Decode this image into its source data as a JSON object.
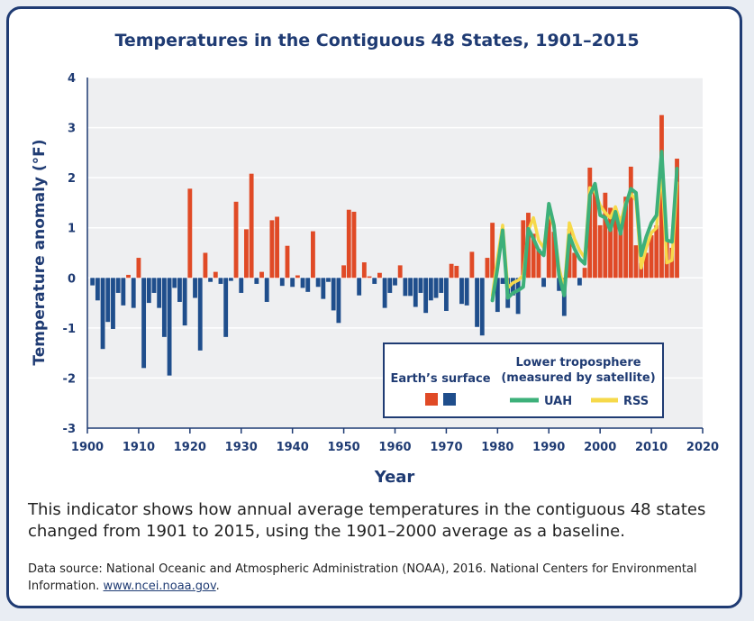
{
  "chart_data": {
    "type": "bar",
    "title": "Temperatures in the Contiguous 48 States, 1901–2015",
    "xlabel": "Year",
    "ylabel": "Temperature anomaly (°F)",
    "xlim": [
      1900,
      2020
    ],
    "ylim": [
      -3,
      4
    ],
    "xticks": [
      "1900",
      "1910",
      "1920",
      "1930",
      "1940",
      "1950",
      "1960",
      "1970",
      "1980",
      "1990",
      "2000",
      "2010",
      "2020"
    ],
    "yticks": [
      "4",
      "3",
      "2",
      "1",
      "0",
      "-1",
      "-2",
      "-3"
    ],
    "grid": "horizontal",
    "legend_position": "bottom-right",
    "colors": {
      "positive": "#e04a26",
      "negative": "#1f4e8c",
      "uah": "#3db07a",
      "rss": "#f6d94a",
      "axis": "#1f3b73"
    },
    "surface": {
      "name": "Earth’s surface",
      "years": [
        1901,
        1902,
        1903,
        1904,
        1905,
        1906,
        1907,
        1908,
        1909,
        1910,
        1911,
        1912,
        1913,
        1914,
        1915,
        1916,
        1917,
        1918,
        1919,
        1920,
        1921,
        1922,
        1923,
        1924,
        1925,
        1926,
        1927,
        1928,
        1929,
        1930,
        1931,
        1932,
        1933,
        1934,
        1935,
        1936,
        1937,
        1938,
        1939,
        1940,
        1941,
        1942,
        1943,
        1944,
        1945,
        1946,
        1947,
        1948,
        1949,
        1950,
        1951,
        1952,
        1953,
        1954,
        1955,
        1956,
        1957,
        1958,
        1959,
        1960,
        1961,
        1962,
        1963,
        1964,
        1965,
        1966,
        1967,
        1968,
        1969,
        1970,
        1971,
        1972,
        1973,
        1974,
        1975,
        1976,
        1977,
        1978,
        1979,
        1980,
        1981,
        1982,
        1983,
        1984,
        1985,
        1986,
        1987,
        1988,
        1989,
        1990,
        1991,
        1992,
        1993,
        1994,
        1995,
        1996,
        1997,
        1998,
        1999,
        2000,
        2001,
        2002,
        2003,
        2004,
        2005,
        2006,
        2007,
        2008,
        2009,
        2010,
        2011,
        2012,
        2013,
        2014,
        2015
      ],
      "values": [
        -0.15,
        -0.45,
        -1.42,
        -0.88,
        -1.02,
        -0.3,
        -0.55,
        0.06,
        -0.6,
        0.4,
        -1.8,
        -0.5,
        -0.3,
        -0.6,
        -1.18,
        -1.95,
        -0.2,
        -0.48,
        -0.95,
        1.78,
        -0.4,
        -1.45,
        0.5,
        -0.08,
        0.12,
        -0.12,
        -1.18,
        -0.06,
        1.52,
        -0.3,
        0.97,
        2.08,
        -0.12,
        0.12,
        -0.48,
        1.15,
        1.22,
        -0.16,
        0.64,
        -0.18,
        0.05,
        -0.2,
        -0.28,
        0.93,
        -0.18,
        -0.42,
        -0.08,
        -0.65,
        -0.9,
        0.25,
        1.36,
        1.32,
        -0.35,
        0.31,
        0.03,
        -0.12,
        0.1,
        -0.6,
        -0.3,
        -0.15,
        0.25,
        -0.36,
        -0.36,
        -0.58,
        -0.3,
        -0.7,
        -0.45,
        -0.4,
        -0.3,
        -0.66,
        0.28,
        0.24,
        -0.52,
        -0.55,
        0.52,
        -0.98,
        -1.15,
        0.4,
        1.1,
        -0.68,
        -0.12,
        -0.6,
        -0.35,
        -0.72,
        1.15,
        1.3,
        0.88,
        0.58,
        -0.18,
        1.25,
        0.92,
        -0.26,
        -0.76,
        0.98,
        0.5,
        -0.15,
        0.2,
        2.2,
        1.78,
        1.05,
        1.7,
        1.4,
        1.28,
        1.22,
        1.62,
        2.22,
        0.65,
        0.3,
        0.5,
        0.85,
        1.05,
        3.25,
        0.75,
        0.6,
        2.38
      ]
    },
    "satellite_label": "Lower troposphere\n(measured by satellite)",
    "series": [
      {
        "name": "UAH",
        "x": [
          1979,
          1980,
          1981,
          1982,
          1983,
          1984,
          1985,
          1986,
          1987,
          1988,
          1989,
          1990,
          1991,
          1992,
          1993,
          1994,
          1995,
          1996,
          1997,
          1998,
          1999,
          2000,
          2001,
          2002,
          2003,
          2004,
          2005,
          2006,
          2007,
          2008,
          2009,
          2010,
          2011,
          2012,
          2013,
          2014,
          2015
        ],
        "values": [
          -0.45,
          0.2,
          0.95,
          -0.4,
          -0.3,
          -0.25,
          -0.18,
          0.98,
          0.78,
          0.55,
          0.45,
          1.48,
          1.05,
          0.05,
          -0.35,
          0.85,
          0.58,
          0.38,
          0.28,
          1.65,
          1.88,
          1.25,
          1.2,
          0.95,
          1.32,
          0.88,
          1.45,
          1.78,
          1.7,
          0.45,
          0.82,
          1.1,
          1.25,
          2.52,
          0.75,
          0.72,
          2.18
        ]
      },
      {
        "name": "RSS",
        "x": [
          1979,
          1980,
          1981,
          1982,
          1983,
          1984,
          1985,
          1986,
          1987,
          1988,
          1989,
          1990,
          1991,
          1992,
          1993,
          1994,
          1995,
          1996,
          1997,
          1998,
          1999,
          2000,
          2001,
          2002,
          2003,
          2004,
          2005,
          2006,
          2007,
          2008,
          2009,
          2010,
          2011,
          2012,
          2013,
          2014,
          2015
        ],
        "values": [
          -0.35,
          0.4,
          1.05,
          -0.2,
          -0.1,
          -0.05,
          0.05,
          0.95,
          1.2,
          0.75,
          0.6,
          1.35,
          1.0,
          0.2,
          -0.25,
          1.1,
          0.78,
          0.55,
          0.4,
          1.8,
          1.72,
          1.45,
          1.3,
          1.2,
          1.42,
          1.1,
          1.5,
          1.68,
          1.55,
          0.2,
          0.6,
          0.9,
          1.0,
          2.2,
          0.3,
          0.35,
          1.9
        ]
      }
    ]
  },
  "caption": "This indicator shows how annual average temperatures in the contiguous 48 states changed from 1901 to 2015, using the 1901–2000 average as a baseline.",
  "source": {
    "prefix": "Data source: National Oceanic and Atmospheric Administration (NOAA), 2016. National Centers for Environmental Information. ",
    "link": "www.ncei.noaa.gov",
    "suffix": "."
  }
}
